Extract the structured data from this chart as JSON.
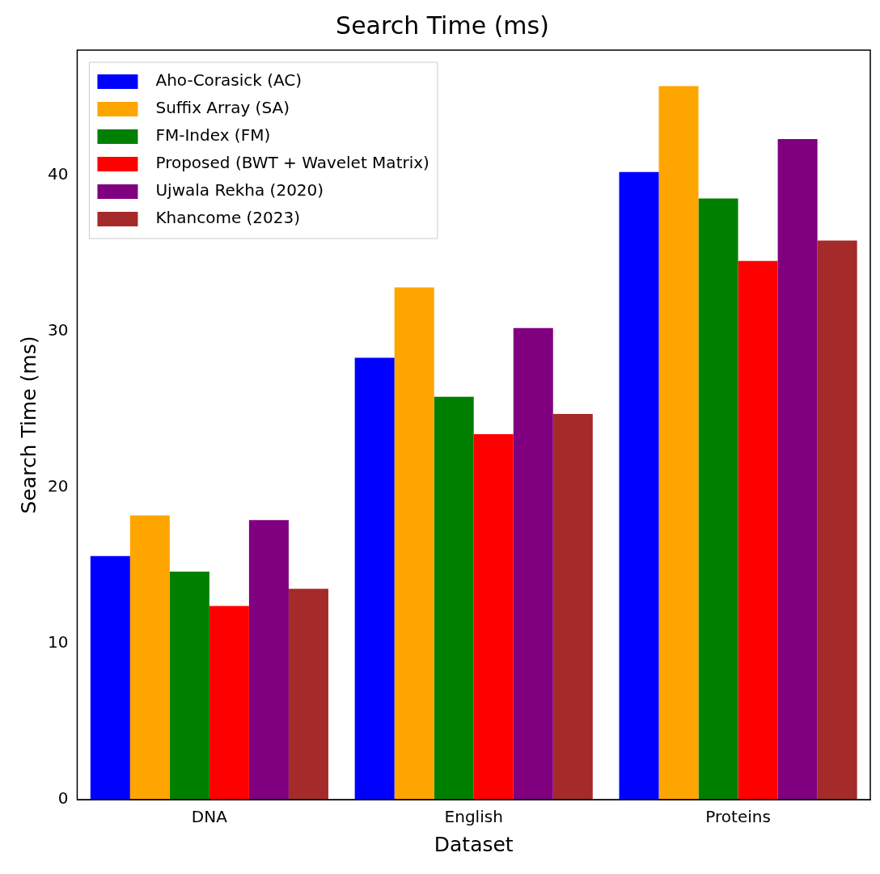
{
  "chart_data": {
    "type": "bar",
    "title": "Search Time (ms)",
    "xlabel": "Dataset",
    "ylabel": "Search Time (ms)",
    "categories": [
      "DNA",
      "English",
      "Proteins"
    ],
    "series": [
      {
        "name": "Aho-Corasick (AC)",
        "color": "#0000ff",
        "values": [
          15.6,
          28.3,
          40.2
        ]
      },
      {
        "name": "Suffix Array (SA)",
        "color": "#ffa500",
        "values": [
          18.2,
          32.8,
          45.7
        ]
      },
      {
        "name": "FM-Index (FM)",
        "color": "#008000",
        "values": [
          14.6,
          25.8,
          38.5
        ]
      },
      {
        "name": "Proposed (BWT + Wavelet Matrix)",
        "color": "#ff0000",
        "values": [
          12.4,
          23.4,
          34.5
        ]
      },
      {
        "name": "Ujwala Rekha (2020)",
        "color": "#800080",
        "values": [
          17.9,
          30.2,
          42.3
        ]
      },
      {
        "name": "Khancome (2023)",
        "color": "#a52a2a",
        "values": [
          13.5,
          24.7,
          35.8
        ]
      }
    ],
    "ylim": [
      0,
      48
    ],
    "yticks": [
      0,
      10,
      20,
      30,
      40
    ],
    "grid": false,
    "legend": "top left"
  }
}
